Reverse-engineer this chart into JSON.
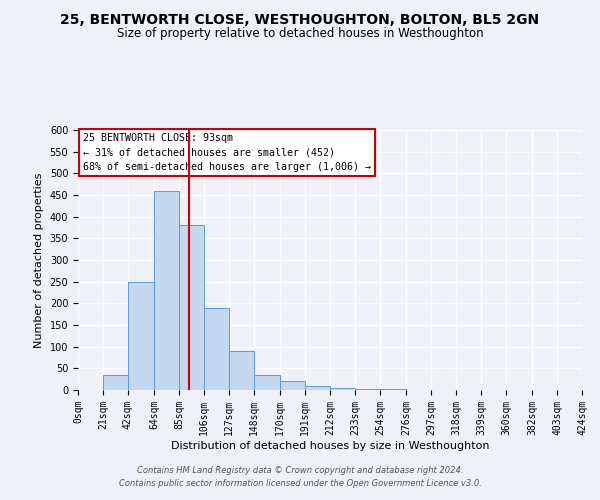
{
  "title": "25, BENTWORTH CLOSE, WESTHOUGHTON, BOLTON, BL5 2GN",
  "subtitle": "Size of property relative to detached houses in Westhoughton",
  "xlabel": "Distribution of detached houses by size in Westhoughton",
  "ylabel": "Number of detached properties",
  "bin_edges": [
    0,
    21,
    42,
    64,
    85,
    106,
    127,
    148,
    170,
    191,
    212,
    233,
    254,
    276,
    297,
    318,
    339,
    360,
    382,
    403,
    424
  ],
  "bin_counts": [
    0,
    35,
    250,
    460,
    380,
    190,
    90,
    35,
    20,
    10,
    5,
    2,
    2,
    1,
    1,
    1,
    0,
    0,
    0,
    0
  ],
  "bar_color": "#c5d8f0",
  "bar_edge_color": "#5b9bd5",
  "property_size": 93,
  "vline_color": "#cc0000",
  "ylim": [
    0,
    600
  ],
  "yticks": [
    0,
    50,
    100,
    150,
    200,
    250,
    300,
    350,
    400,
    450,
    500,
    550,
    600
  ],
  "annotation_box_color": "#ffffff",
  "annotation_border_color": "#cc0000",
  "annotation_line1": "25 BENTWORTH CLOSE: 93sqm",
  "annotation_line2": "← 31% of detached houses are smaller (452)",
  "annotation_line3": "68% of semi-detached houses are larger (1,006) →",
  "footer1": "Contains HM Land Registry data © Crown copyright and database right 2024.",
  "footer2": "Contains public sector information licensed under the Open Government Licence v3.0.",
  "background_color": "#eef2f8",
  "grid_color": "#ffffff",
  "title_fontsize": 10,
  "subtitle_fontsize": 8.5,
  "tick_label_fontsize": 7,
  "axis_label_fontsize": 8,
  "footer_fontsize": 6
}
